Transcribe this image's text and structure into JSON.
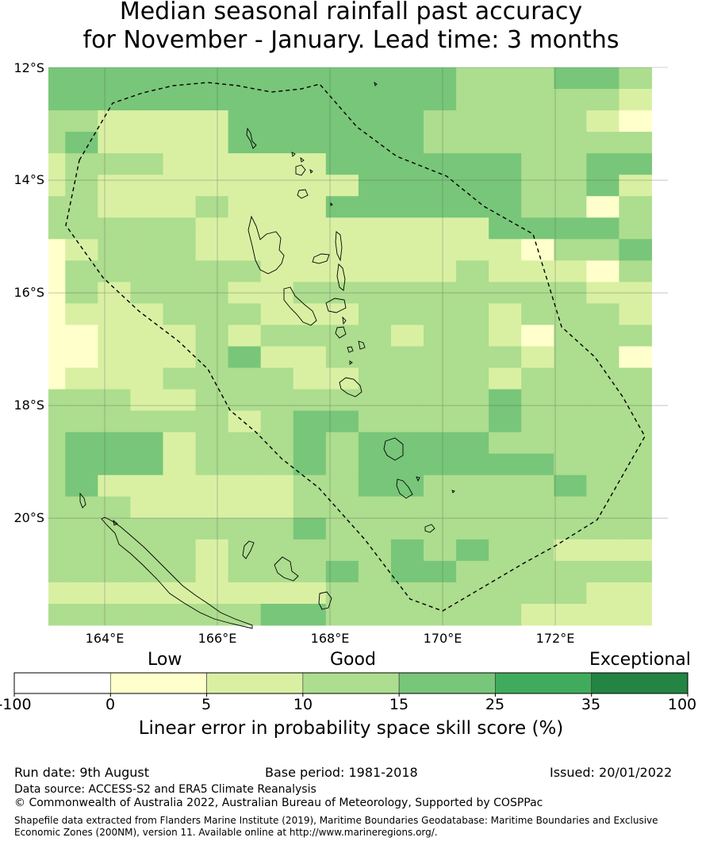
{
  "title": {
    "line1": "Median seasonal rainfall past accuracy",
    "line2": "for November - January. Lead time: 3 months"
  },
  "map": {
    "lat_labels": [
      "12°S",
      "14°S",
      "16°S",
      "18°S",
      "20°S"
    ],
    "lon_labels": [
      "164°E",
      "166°E",
      "168°E",
      "170°E",
      "172°E"
    ],
    "lon_range": [
      163,
      174
    ],
    "lat_range": [
      -21.9,
      -12
    ],
    "colors": [
      "#ffffff",
      "#ffffcc",
      "#d9f0a3",
      "#addd8e",
      "#78c679",
      "#41ab5d",
      "#238443"
    ],
    "grid": [
      "4444444444444333443",
      "4444444444444333332",
      "3322224444443333321",
      "3422224444443333333",
      "2333222224444443344",
      "2322222222444443342",
      "3322232224444443313",
      "3333322222222244443",
      "1233322222222221334",
      "1333333222222322213",
      "1323332233333333322",
      "1222333222333323332",
      "1122232333323321333",
      "1122234223333332331",
      "1222333322333323333",
      "3332233333333343333",
      "3333332344333343333",
      "3444233343444433333",
      "3444233343444444333",
      "3422222233443333433",
      "3332222233333333333",
      "3333333343333333333",
      "3333323333343433222",
      "3333323334344333333",
      "2222222223333333322",
      "3333333443333332222"
    ]
  },
  "legend": {
    "categories": [
      "Low",
      "Good",
      "Exceptional"
    ],
    "ticks": [
      "-100",
      "0",
      "5",
      "10",
      "15",
      "25",
      "35",
      "100"
    ],
    "colors": [
      "#ffffff",
      "#ffffcc",
      "#d9f0a3",
      "#addd8e",
      "#78c679",
      "#41ab5d",
      "#238443"
    ],
    "label": "Linear error in probability space skill score (%)"
  },
  "footer": {
    "run_date": "Run date: 9th August",
    "base_period": "Base period: 1981-2018",
    "issued": "Issued: 20/01/2022",
    "data_source": "Data source: ACCESS-S2 and ERA5 Climate Reanalysis",
    "copyright": "© Commonwealth of Australia 2022, Australian Bureau of Meteorology, Supported by COSPPac",
    "shapefile": "Shapefile data extracted from Flanders Marine Institute (2019), Maritime Boundaries Geodatabase: Maritime Boundaries and Exclusive Economic Zones (200NM), version 11. Available online at http://www.marineregions.org/."
  }
}
